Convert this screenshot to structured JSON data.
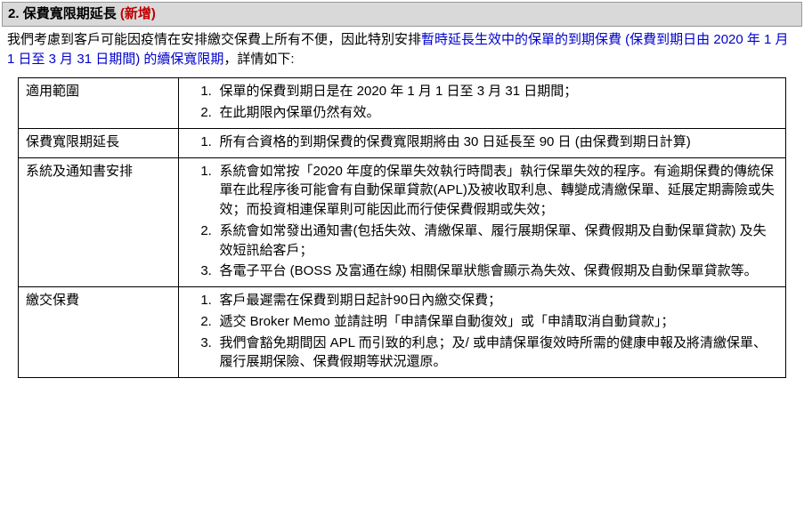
{
  "header": {
    "number": "2.",
    "title": "保費寬限期延長",
    "new_tag": "(新增)"
  },
  "intro": {
    "prefix": "我們考慮到客戶可能因疫情在安排繳交保費上所有不便，因此特別安排",
    "highlight": "暫時延長生效中的保單的到期保費 (保費到期日由 2020 年 1 月 1 日至 3 月 31 日期間) 的續保寬限期",
    "suffix": "，詳情如下:"
  },
  "rows": [
    {
      "label": "適用範圍",
      "items": [
        "保單的保費到期日是在 2020 年 1 月 1 日至 3 月 31 日期間；",
        "在此期限內保單仍然有效。"
      ]
    },
    {
      "label": "保費寬限期延長",
      "items": [
        "所有合資格的到期保費的保費寬限期將由 30 日延長至 90 日 (由保費到期日計算)"
      ]
    },
    {
      "label": "系統及通知書安排",
      "items": [
        "系統會如常按「2020 年度的保單失效執行時間表」執行保單失效的程序。有逾期保費的傳統保單在此程序後可能會有自動保單貸款(APL)及被收取利息、轉變成清繳保單、延展定期壽險或失效；而投資相連保單則可能因此而行使保費假期或失效；",
        "系統會如常發出通知書(包括失效、清繳保單、履行展期保單、保費假期及自動保單貸款) 及失效短訊給客戶；",
        "各電子平台 (BOSS 及富通在線) 相關保單狀態會顯示為失效、保費假期及自動保單貸款等。"
      ]
    },
    {
      "label": "繳交保費",
      "items": [
        "客戶最遲需在保費到期日起計90日內繳交保費；",
        "遞交 Broker Memo 並請註明「申請保單自動復效」或「申請取消自動貸款」；",
        "我們會豁免期間因 APL 而引致的利息；及/ 或申請保單復效時所需的健康申報及將清繳保單、履行展期保險、保費假期等狀況還原。"
      ]
    }
  ]
}
